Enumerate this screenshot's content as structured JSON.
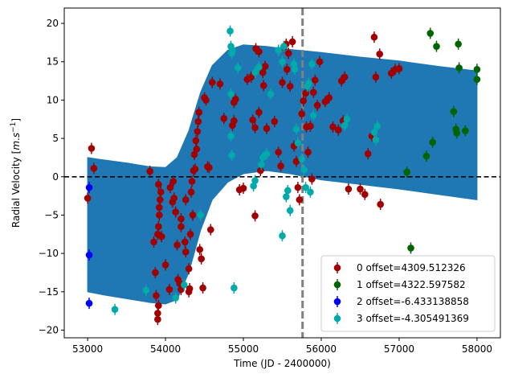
{
  "chart_data": {
    "type": "scatter",
    "xlabel": "Time (JD - 2400000)",
    "ylabel_main": "Radial Velocity [",
    "ylabel_unit_m": "m",
    "ylabel_unit_s": "s",
    "ylabel_unit_exp": "−1",
    "ylabel_close": "]",
    "xlim": [
      52700,
      58300
    ],
    "ylim": [
      -21,
      22
    ],
    "xticks": [
      53000,
      54000,
      55000,
      56000,
      57000,
      58000
    ],
    "xtick_labels": [
      "53000",
      "54000",
      "55000",
      "56000",
      "57000",
      "58000"
    ],
    "yticks": [
      -20,
      -15,
      -10,
      -5,
      0,
      5,
      10,
      15,
      20
    ],
    "ytick_labels": [
      "−20",
      "−15",
      "−10",
      "−5",
      "0",
      "5",
      "10",
      "15",
      "20"
    ],
    "zero_line": 0,
    "vertical_line_x": 55760,
    "legend_position": "lower right",
    "model_band": {
      "color": "#1f77b4",
      "x": [
        53000,
        53200,
        53500,
        53800,
        54000,
        54150,
        54300,
        54450,
        54600,
        54800,
        55000,
        55300,
        55600,
        56000,
        56500,
        57000,
        57500,
        58000
      ],
      "upper": [
        2.5,
        2.2,
        1.8,
        1.3,
        1.2,
        2.5,
        6.0,
        11.0,
        14.5,
        16.5,
        17.2,
        17.0,
        16.6,
        16.2,
        15.6,
        15.1,
        14.4,
        13.8
      ],
      "lower": [
        -15.0,
        -15.4,
        -15.9,
        -16.4,
        -16.6,
        -16.0,
        -12.5,
        -7.0,
        -3.0,
        -0.7,
        0.4,
        0.8,
        0.4,
        -0.4,
        -1.0,
        -1.6,
        -2.3,
        -3.0
      ]
    },
    "series": [
      {
        "name": "0 offset=4309.512326",
        "color": "#a00000",
        "points": [
          [
            53000,
            -2.8
          ],
          [
            53050,
            3.7
          ],
          [
            53080,
            1.1
          ],
          [
            53800,
            0.7
          ],
          [
            53850,
            -8.5
          ],
          [
            53870,
            -12.5
          ],
          [
            53880,
            -15.5
          ],
          [
            53900,
            -18.6
          ],
          [
            53900,
            -17.8
          ],
          [
            53910,
            -16.8
          ],
          [
            53900,
            -7.5
          ],
          [
            53910,
            -6.5
          ],
          [
            53920,
            -5
          ],
          [
            53920,
            -4
          ],
          [
            53930,
            -3
          ],
          [
            53940,
            -2
          ],
          [
            53910,
            -1
          ],
          [
            53950,
            -7.8
          ],
          [
            54000,
            -11.5
          ],
          [
            54050,
            -14.7
          ],
          [
            54060,
            -1.4
          ],
          [
            54090,
            -3.3
          ],
          [
            54100,
            -0.6
          ],
          [
            54110,
            -2.8
          ],
          [
            54130,
            -4.6
          ],
          [
            54150,
            -8.9
          ],
          [
            54160,
            -13.4
          ],
          [
            54180,
            -13.9
          ],
          [
            54200,
            -14.7
          ],
          [
            54200,
            -6.5
          ],
          [
            54200,
            -5.5
          ],
          [
            54250,
            -8.5
          ],
          [
            54260,
            -9.8
          ],
          [
            54260,
            -3
          ],
          [
            54300,
            -12
          ],
          [
            54300,
            -15
          ],
          [
            54310,
            -14.6
          ],
          [
            54320,
            -7.5
          ],
          [
            54330,
            -2
          ],
          [
            54340,
            -0.6
          ],
          [
            54350,
            -5
          ],
          [
            54360,
            0.8
          ],
          [
            54370,
            2.9
          ],
          [
            54380,
            1
          ],
          [
            54390,
            4.7
          ],
          [
            54400,
            3.6
          ],
          [
            54410,
            5.9
          ],
          [
            54420,
            7.2
          ],
          [
            54430,
            8.4
          ],
          [
            54440,
            -9.5
          ],
          [
            54460,
            -10.7
          ],
          [
            54480,
            -14.5
          ],
          [
            54500,
            10.3
          ],
          [
            54520,
            10
          ],
          [
            54540,
            1.3
          ],
          [
            54560,
            1.2
          ],
          [
            54580,
            -6.9
          ],
          [
            54600,
            12.3
          ],
          [
            54700,
            12.1
          ],
          [
            54750,
            7.6
          ],
          [
            54860,
            6.7
          ],
          [
            54880,
            7.3
          ],
          [
            54880,
            9.7
          ],
          [
            54900,
            10.1
          ],
          [
            54950,
            -1.7
          ],
          [
            55000,
            -1.5
          ],
          [
            55050,
            12.7
          ],
          [
            55100,
            13
          ],
          [
            55120,
            7.4
          ],
          [
            55150,
            6.4
          ],
          [
            55150,
            -5.1
          ],
          [
            55160,
            16.7
          ],
          [
            55200,
            16.3
          ],
          [
            55200,
            8.4
          ],
          [
            55220,
            0.8
          ],
          [
            55250,
            13.6
          ],
          [
            55260,
            11.9
          ],
          [
            55280,
            14.4
          ],
          [
            55300,
            6.3
          ],
          [
            55400,
            7.2
          ],
          [
            55450,
            3.2
          ],
          [
            55480,
            1.4
          ],
          [
            55500,
            12.3
          ],
          [
            55520,
            16.9
          ],
          [
            55550,
            17.3
          ],
          [
            55560,
            14
          ],
          [
            55580,
            16.1
          ],
          [
            55600,
            11.8
          ],
          [
            55630,
            17.6
          ],
          [
            55650,
            4
          ],
          [
            55680,
            2
          ],
          [
            55700,
            -1.4
          ],
          [
            55720,
            -3
          ],
          [
            55750,
            8.2
          ],
          [
            55770,
            9.9
          ],
          [
            55800,
            10.9
          ],
          [
            55810,
            6.5
          ],
          [
            55830,
            3.2
          ],
          [
            55860,
            6.6
          ],
          [
            55880,
            -0.3
          ],
          [
            55900,
            11
          ],
          [
            55920,
            12.6
          ],
          [
            55950,
            9.3
          ],
          [
            55980,
            15
          ],
          [
            56050,
            9.8
          ],
          [
            56100,
            10.3
          ],
          [
            56150,
            6.5
          ],
          [
            56220,
            6.1
          ],
          [
            56260,
            12.5
          ],
          [
            56280,
            7.3
          ],
          [
            56300,
            13
          ],
          [
            56350,
            -1.6
          ],
          [
            56500,
            -1.6
          ],
          [
            56560,
            -2.3
          ],
          [
            56600,
            3
          ],
          [
            56650,
            5.3
          ],
          [
            56680,
            18.2
          ],
          [
            56700,
            13
          ],
          [
            56750,
            16
          ],
          [
            56760,
            -3.6
          ],
          [
            56900,
            13.5
          ],
          [
            56950,
            14
          ],
          [
            57000,
            14.1
          ]
        ]
      },
      {
        "name": "1 offset=4322.597582",
        "color": "#006400",
        "points": [
          [
            57100,
            0.6
          ],
          [
            57150,
            -9.3
          ],
          [
            57350,
            2.7
          ],
          [
            57400,
            18.7
          ],
          [
            57430,
            4.5
          ],
          [
            57480,
            17
          ],
          [
            57700,
            8.5
          ],
          [
            57730,
            6.2
          ],
          [
            57740,
            5.7
          ],
          [
            57760,
            17.3
          ],
          [
            57770,
            14.2
          ],
          [
            57850,
            6
          ],
          [
            58000,
            14
          ],
          [
            58000,
            12.7
          ]
        ]
      },
      {
        "name": "2 offset=-6.433138858",
        "color": "#0000ff",
        "points": [
          [
            53020,
            -1.4
          ],
          [
            53020,
            -10.2
          ],
          [
            53020,
            -16.5
          ]
        ]
      },
      {
        "name": "3 offset=-4.305491369",
        "color": "#00aaaa",
        "points": [
          [
            53350,
            -17.3
          ],
          [
            53750,
            -14.8
          ],
          [
            54130,
            -15.8
          ],
          [
            54240,
            -14.1
          ],
          [
            54450,
            -5
          ],
          [
            54830,
            19
          ],
          [
            54840,
            17
          ],
          [
            54850,
            16.1
          ],
          [
            54860,
            16.5
          ],
          [
            54840,
            10.8
          ],
          [
            54840,
            5.3
          ],
          [
            54850,
            2.8
          ],
          [
            54880,
            -14.5
          ],
          [
            54930,
            14.2
          ],
          [
            55150,
            13.6
          ],
          [
            55200,
            14.3
          ],
          [
            55230,
            1.6
          ],
          [
            55250,
            2.5
          ],
          [
            55300,
            3
          ],
          [
            55350,
            10.8
          ],
          [
            55450,
            16.5
          ],
          [
            55500,
            15
          ],
          [
            55520,
            17
          ],
          [
            55550,
            -2.6
          ],
          [
            55570,
            -1.8
          ],
          [
            55600,
            -4.4
          ],
          [
            55650,
            14.7
          ],
          [
            55660,
            14
          ],
          [
            55680,
            6.2
          ],
          [
            55700,
            4.4
          ],
          [
            55750,
            2.3
          ],
          [
            55780,
            0.9
          ],
          [
            55800,
            -1.4
          ],
          [
            55820,
            11.8
          ],
          [
            55840,
            12.2
          ],
          [
            55880,
            14.7
          ],
          [
            55900,
            8
          ],
          [
            55860,
            -2
          ],
          [
            55500,
            -7.7
          ],
          [
            55150,
            -0.5
          ],
          [
            55130,
            -1.2
          ],
          [
            56330,
            7.5
          ],
          [
            56300,
            6.7
          ],
          [
            56680,
            5.8
          ],
          [
            56700,
            4.8
          ],
          [
            56720,
            6.6
          ]
        ]
      }
    ]
  }
}
